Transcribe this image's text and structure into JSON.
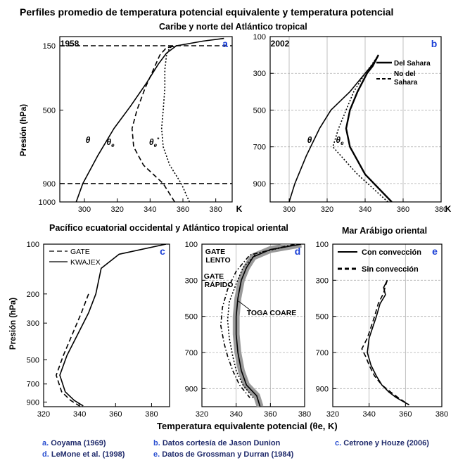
{
  "figure": {
    "title": "Perfiles promedio de temperatura potencial equivalente y temperatura potencial",
    "subtitle_top": "Caribe y norte del Atlántico tropical",
    "subtitle_bottom_left": "Pacífico ecuatorial occidental y Atlántico tropical oriental",
    "subtitle_bottom_right": "Mar Arábigo oriental",
    "common_xlabel": "Temperatura equivalente potencial (θe, K)",
    "common_ylabel": "Presión (hPa)",
    "credits": [
      {
        "letter": "a.",
        "text": "Ooyama (1969)"
      },
      {
        "letter": "b.",
        "text": "Datos cortesía de Jason Dunion"
      },
      {
        "letter": "c.",
        "text": "Cetrone y Houze (2006)"
      },
      {
        "letter": "d.",
        "text": "LeMone et al. (1998)"
      },
      {
        "letter": "e.",
        "text": "Datos de Grossman y Durran (1984)"
      }
    ],
    "colors": {
      "panel_letter": "#1a3fd6",
      "line": "#000000",
      "band": "#9a9a9a",
      "grid": "#b0b0b0"
    }
  },
  "chart_data": [
    {
      "panel": "a",
      "type": "line",
      "year_label": "1958",
      "xlim": [
        285,
        390
      ],
      "ylim": [
        1000,
        100
      ],
      "y_scale": "linear",
      "grid": false,
      "x_ticks": [
        300,
        320,
        340,
        360,
        380
      ],
      "x_unit": "K",
      "y_ticks": [
        150,
        500,
        900,
        1000
      ],
      "hlines": [
        {
          "y": 150,
          "style": "dashed"
        },
        {
          "y": 900,
          "style": "dashed"
        }
      ],
      "series": [
        {
          "label": "θ",
          "style": "solid",
          "points": [
            [
              295,
              1000
            ],
            [
              299,
              900
            ],
            [
              308,
              750
            ],
            [
              318,
              600
            ],
            [
              328,
              480
            ],
            [
              338,
              350
            ],
            [
              345,
              250
            ],
            [
              350,
              190
            ],
            [
              356,
              150
            ],
            [
              372,
              125
            ],
            [
              385,
              110
            ]
          ]
        },
        {
          "label": "θe",
          "style": "dashed",
          "points": [
            [
              355,
              1000
            ],
            [
              348,
              900
            ],
            [
              336,
              800
            ],
            [
              330,
              700
            ],
            [
              329,
              600
            ],
            [
              332,
              500
            ],
            [
              337,
              380
            ],
            [
              342,
              280
            ],
            [
              346,
              200
            ],
            [
              350,
              160
            ],
            [
              356,
              150
            ]
          ]
        },
        {
          "label": "θe*",
          "style": "dotted",
          "points": [
            [
              364,
              1000
            ],
            [
              359,
              900
            ],
            [
              352,
              800
            ],
            [
              348,
              700
            ],
            [
              347,
              600
            ],
            [
              348,
              500
            ],
            [
              349,
              380
            ],
            [
              349,
              280
            ],
            [
              350,
              200
            ],
            [
              352,
              160
            ],
            [
              356,
              150
            ]
          ]
        }
      ]
    },
    {
      "panel": "b",
      "type": "line",
      "year_label": "2002",
      "xlim": [
        290,
        380
      ],
      "ylim": [
        1000,
        100
      ],
      "y_scale": "linear",
      "grid": true,
      "x_ticks": [
        300,
        320,
        340,
        360,
        380
      ],
      "x_unit": "K",
      "y_ticks": [
        100,
        300,
        500,
        700,
        900
      ],
      "legend_position": "top-right",
      "curve_labels": [
        "θ",
        "θe"
      ],
      "series": [
        {
          "name": "Del Sahara",
          "style": "solid-thick",
          "points": [
            [
              354,
              1000
            ],
            [
              340,
              850
            ],
            [
              332,
              700
            ],
            [
              330,
              600
            ],
            [
              332,
              500
            ],
            [
              336,
              400
            ],
            [
              341,
              300
            ],
            [
              344,
              260
            ],
            [
              347,
              200
            ]
          ]
        },
        {
          "name": "No del Sahara",
          "style": "dotted",
          "points": [
            [
              352,
              1000
            ],
            [
              336,
              850
            ],
            [
              323,
              700
            ],
            [
              326,
              600
            ],
            [
              330,
              500
            ],
            [
              334,
              400
            ],
            [
              340,
              300
            ],
            [
              343,
              260
            ],
            [
              347,
              200
            ]
          ]
        },
        {
          "name": "θ",
          "style": "solid",
          "points": [
            [
              300,
              1000
            ],
            [
              303,
              900
            ],
            [
              309,
              750
            ],
            [
              316,
              600
            ],
            [
              322,
              500
            ],
            [
              332,
              400
            ],
            [
              340,
              300
            ],
            [
              344,
              250
            ],
            [
              347,
              200
            ]
          ]
        }
      ]
    },
    {
      "panel": "c",
      "type": "line",
      "xlim": [
        320,
        390
      ],
      "ylim": [
        960,
        100
      ],
      "y_scale": "log",
      "grid": false,
      "x_ticks": [
        320,
        340,
        360,
        380
      ],
      "y_ticks": [
        100,
        200,
        300,
        500,
        700,
        900
      ],
      "legend_position": "top-left",
      "series": [
        {
          "name": "GATE",
          "style": "dashed",
          "points": [
            [
              345,
              200
            ],
            [
              341,
              260
            ],
            [
              336,
              350
            ],
            [
              331,
              470
            ],
            [
              327,
              620
            ],
            [
              330,
              780
            ],
            [
              335,
              880
            ],
            [
              340,
              950
            ]
          ]
        },
        {
          "name": "KWAJEX",
          "style": "solid",
          "points": [
            [
              388,
              100
            ],
            [
              362,
              115
            ],
            [
              352,
              140
            ],
            [
              349,
              200
            ],
            [
              345,
              260
            ],
            [
              339,
              350
            ],
            [
              333,
              470
            ],
            [
              329,
              620
            ],
            [
              332,
              780
            ],
            [
              337,
              880
            ],
            [
              342,
              950
            ]
          ]
        }
      ]
    },
    {
      "panel": "d",
      "type": "line",
      "xlim": [
        320,
        380
      ],
      "ylim": [
        1000,
        100
      ],
      "y_scale": "linear",
      "grid": true,
      "x_ticks": [
        320,
        340,
        360,
        380
      ],
      "y_ticks": [
        100,
        300,
        500,
        700,
        900
      ],
      "annotations": [
        "GATE LENTO",
        "GATE RÁPIDO",
        "TOGA COARE"
      ],
      "series": [
        {
          "name": "TOGA COARE",
          "style": "solid-band",
          "band_halfwidth": 2,
          "points": [
            [
              378,
              100
            ],
            [
              360,
              130
            ],
            [
              350,
              170
            ],
            [
              346,
              230
            ],
            [
              343,
              300
            ],
            [
              341,
              400
            ],
            [
              340,
              500
            ],
            [
              340,
              600
            ],
            [
              341,
              700
            ],
            [
              343,
              800
            ],
            [
              346,
              880
            ],
            [
              352,
              940
            ],
            [
              354,
              1000
            ]
          ]
        },
        {
          "name": "GATE LENTO",
          "style": "dotted",
          "points": [
            [
              376,
              100
            ],
            [
              352,
              150
            ],
            [
              344,
              230
            ],
            [
              340,
              320
            ],
            [
              336,
              420
            ],
            [
              335,
              520
            ],
            [
              336,
              620
            ],
            [
              338,
              720
            ],
            [
              340,
              800
            ],
            [
              344,
              880
            ],
            [
              350,
              950
            ]
          ]
        },
        {
          "name": "GATE RÁPIDO",
          "style": "dash-dot",
          "points": [
            [
              374,
              100
            ],
            [
              348,
              160
            ],
            [
              340,
              250
            ],
            [
              335,
              350
            ],
            [
              332,
              450
            ],
            [
              331,
              550
            ],
            [
              333,
              650
            ],
            [
              335,
              720
            ],
            [
              338,
              800
            ],
            [
              342,
              880
            ],
            [
              348,
              950
            ]
          ]
        }
      ]
    },
    {
      "panel": "e",
      "type": "line",
      "xlim": [
        320,
        380
      ],
      "ylim": [
        1000,
        100
      ],
      "y_scale": "linear",
      "grid": true,
      "x_ticks": [
        320,
        340,
        360,
        380
      ],
      "y_ticks": [
        100,
        300,
        500,
        700,
        900
      ],
      "legend_position": "top-left",
      "series": [
        {
          "name": "Con convección",
          "style": "solid",
          "points": [
            [
              350,
              300
            ],
            [
              348,
              340
            ],
            [
              349,
              380
            ],
            [
              346,
              430
            ],
            [
              344,
              500
            ],
            [
              342,
              560
            ],
            [
              340,
              620
            ],
            [
              339,
              700
            ],
            [
              341,
              770
            ],
            [
              344,
              830
            ],
            [
              347,
              880
            ],
            [
              351,
              920
            ],
            [
              355,
              950
            ],
            [
              362,
              990
            ]
          ]
        },
        {
          "name": "Sin convección",
          "style": "dashed",
          "points": [
            [
              350,
              300
            ],
            [
              349,
              330
            ],
            [
              348,
              370
            ],
            [
              345,
              430
            ],
            [
              343,
              500
            ],
            [
              341,
              560
            ],
            [
              339,
              620
            ],
            [
              336,
              680
            ],
            [
              338,
              720
            ],
            [
              340,
              770
            ],
            [
              343,
              830
            ],
            [
              347,
              880
            ],
            [
              352,
              920
            ],
            [
              356,
              950
            ],
            [
              362,
              990
            ]
          ]
        }
      ]
    }
  ]
}
